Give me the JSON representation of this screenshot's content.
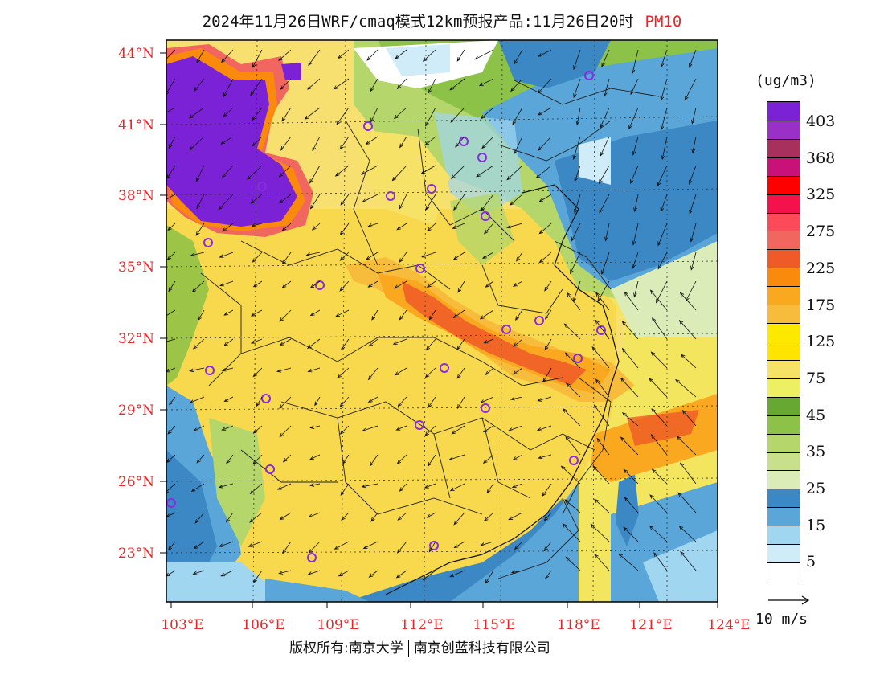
{
  "title": {
    "main": "2024年11月26日WRF/cmaq模式12km预报产品:11月26日20时",
    "pollutant": "PM10"
  },
  "axes": {
    "lat_labels": [
      "44°N",
      "41°N",
      "38°N",
      "35°N",
      "32°N",
      "29°N",
      "26°N",
      "23°N"
    ],
    "lon_labels": [
      "103°E",
      "106°E",
      "109°E",
      "112°E",
      "115°E",
      "118°E",
      "121°E",
      "124°E"
    ]
  },
  "legend": {
    "unit": "(ug/m3)",
    "labels": [
      "403",
      "368",
      "325",
      "275",
      "225",
      "175",
      "125",
      "75",
      "45",
      "35",
      "25",
      "15",
      "5"
    ],
    "colors_top_to_bottom": [
      "#7b22d6",
      "#9b30c8",
      "#a8305c",
      "#c8127a",
      "#ff0000",
      "#f5114c",
      "#fc4a5a",
      "#f26660",
      "#ee5a28",
      "#fa8a0c",
      "#faa820",
      "#f8bc3c",
      "#fde800",
      "#ffe400",
      "#f5e266",
      "#eef064",
      "#66a832",
      "#8cc248",
      "#b4d66a",
      "#c8e08c",
      "#dcecb8",
      "#3c88c4",
      "#5aa6d8",
      "#a0d6f0",
      "#d0ecf8",
      "#ffffff"
    ]
  },
  "reference_vector": {
    "label": "10 m/s"
  },
  "copyright": {
    "left": "版权所有:南京大学",
    "right": "南京创蓝科技有限公司"
  },
  "colors": {
    "title_accent": "#e8262a",
    "tick": "#e8262a"
  }
}
